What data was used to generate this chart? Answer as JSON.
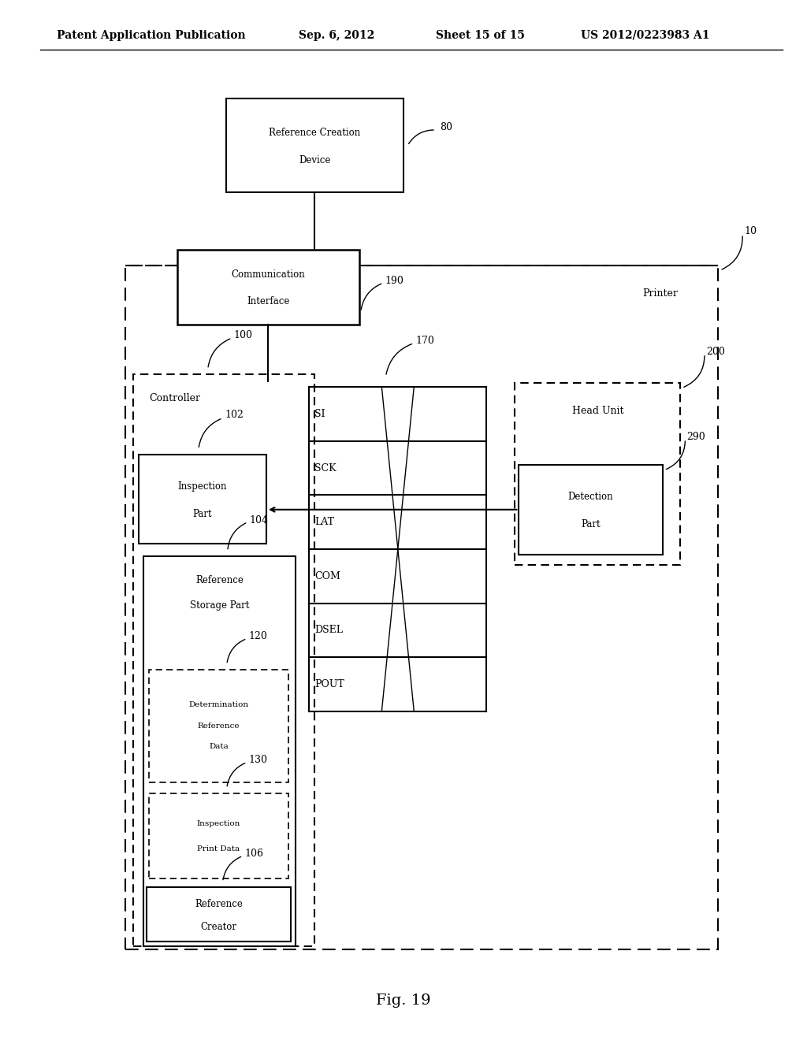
{
  "title_line1": "Patent Application Publication",
  "title_line2": "Sep. 6, 2012",
  "title_line3": "Sheet 15 of 15",
  "title_line4": "US 2012/0223983 A1",
  "fig_label": "Fig. 19",
  "background_color": "#ffffff",
  "line_color": "#000000",
  "bus_signals": [
    "SI",
    "SCK",
    "LAT",
    "COM",
    "DSEL",
    "POUT"
  ]
}
